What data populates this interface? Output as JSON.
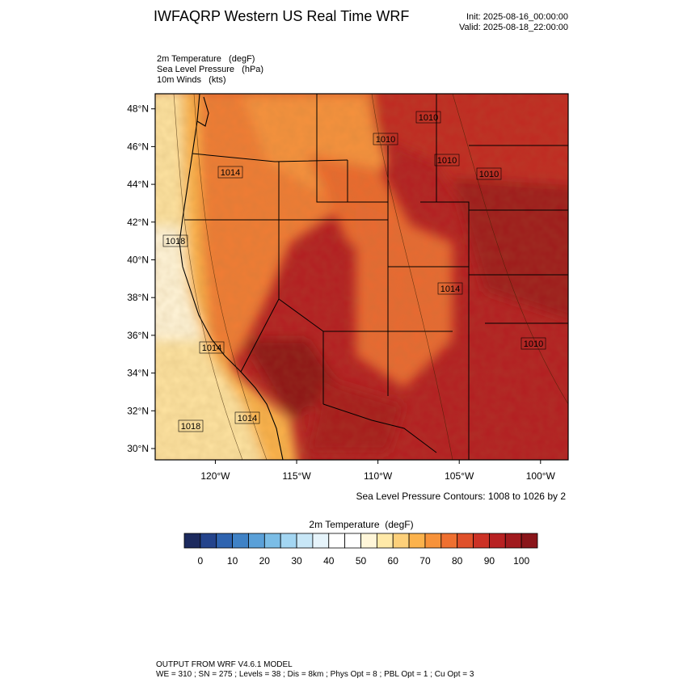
{
  "header": {
    "title": "IWFAQRP Western US Real Time WRF",
    "init": "Init: 2025-08-16_00:00:00",
    "valid": "Valid: 2025-08-18_22:00:00"
  },
  "fields": [
    "2m Temperature   (degF)",
    "Sea Level Pressure   (hPa)",
    "10m Winds   (kts)"
  ],
  "map": {
    "xlim": [
      -123.7,
      -98.3
    ],
    "ylim": [
      29.4,
      48.8
    ],
    "xticks": [
      {
        "value": -120,
        "label": "120°W"
      },
      {
        "value": -115,
        "label": "115°W"
      },
      {
        "value": -110,
        "label": "110°W"
      },
      {
        "value": -105,
        "label": "105°W"
      },
      {
        "value": -100,
        "label": "100°W"
      }
    ],
    "yticks": [
      {
        "value": 48,
        "label": "48°N"
      },
      {
        "value": 46,
        "label": "46°N"
      },
      {
        "value": 44,
        "label": "44°N"
      },
      {
        "value": 42,
        "label": "42°N"
      },
      {
        "value": 40,
        "label": "40°N"
      },
      {
        "value": 38,
        "label": "38°N"
      },
      {
        "value": 36,
        "label": "36°N"
      },
      {
        "value": 34,
        "label": "34°N"
      },
      {
        "value": 32,
        "label": "32°N"
      },
      {
        "value": 30,
        "label": "30°N"
      }
    ],
    "contour_labels": [
      "1010",
      "1010",
      "1010",
      "1010",
      "1014",
      "1018",
      "1014",
      "1014",
      "1018",
      "1014",
      "1010"
    ],
    "contour_note": "Sea Level Pressure Contours: 1008 to 1026 by 2"
  },
  "colorbar": {
    "title": "2m Temperature  (degF)",
    "range": [
      -5,
      105
    ],
    "ticks": [
      0,
      10,
      20,
      30,
      40,
      50,
      60,
      70,
      80,
      90,
      100
    ],
    "colors": [
      "#1c2a5e",
      "#24448c",
      "#2f64b0",
      "#3f82c6",
      "#5aa0d8",
      "#7bbde6",
      "#a3d6f2",
      "#c8e7f7",
      "#e6f4fb",
      "#ffffff",
      "#ffffff",
      "#fff6d9",
      "#ffe9a8",
      "#fdd07a",
      "#fbb24c",
      "#f7923a",
      "#ef7030",
      "#e0502a",
      "#cc3226",
      "#b82122",
      "#a11a1e",
      "#8a151a"
    ]
  },
  "footer": [
    "OUTPUT FROM WRF V4.6.1 MODEL",
    "WE = 310 ; SN = 275 ; Levels = 38 ; Dis = 8km ; Phys Opt = 8 ; PBL Opt = 1 ; Cu Opt = 3"
  ]
}
